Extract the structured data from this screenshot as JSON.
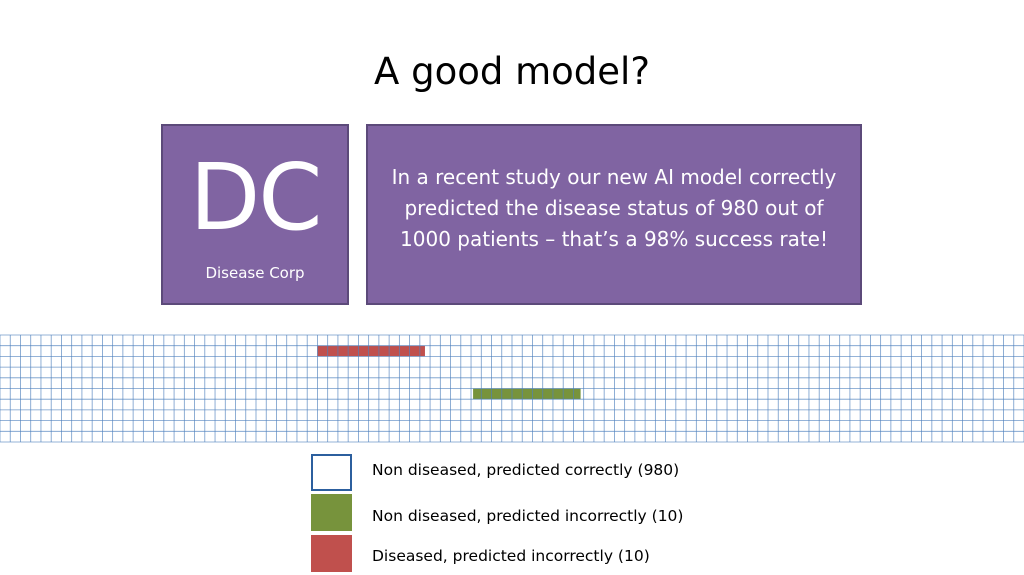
{
  "title": "A good model?",
  "logo": {
    "initials": "DC",
    "name": "Disease Corp"
  },
  "claim": "In a recent study our new AI model correctly predicted the disease status of 980 out of 1000 patients – that’s a 98% success rate!",
  "legend": [
    {
      "label": "Non diseased, predicted correctly (980)"
    },
    {
      "label": "Non diseased, predicted incorrectly (10)"
    },
    {
      "label": "Diseased, predicted incorrectly (10)"
    }
  ]
}
